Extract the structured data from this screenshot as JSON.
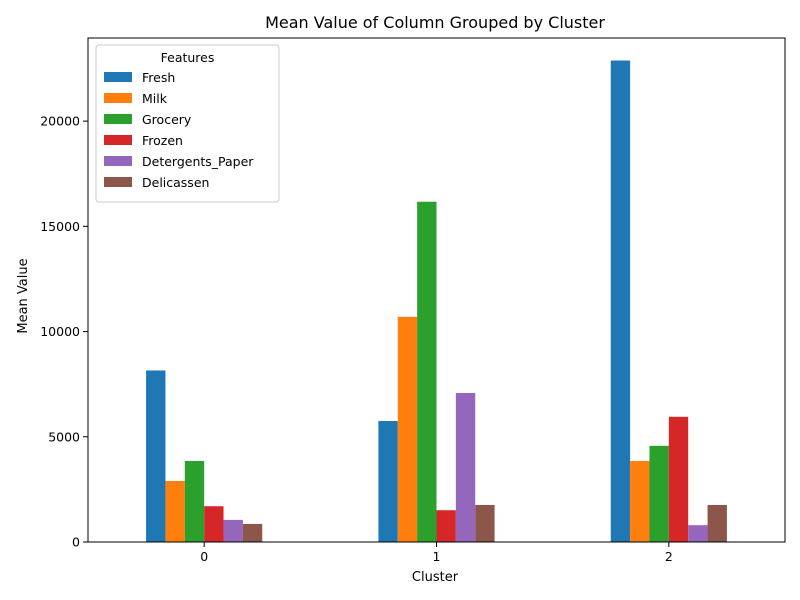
{
  "chart_data": {
    "type": "bar",
    "title": "Mean Value of Column Grouped by Cluster",
    "xlabel": "Cluster",
    "ylabel": "Mean Value",
    "categories": [
      "0",
      "1",
      "2"
    ],
    "ylim": [
      0,
      23950
    ],
    "yticks": [
      0,
      5000,
      10000,
      15000,
      20000
    ],
    "legend": {
      "title": "Features",
      "position": "upper-left"
    },
    "series": [
      {
        "name": "Fresh",
        "color": "#1f77b4",
        "values": [
          8150,
          5750,
          22880
        ]
      },
      {
        "name": "Milk",
        "color": "#ff7f0e",
        "values": [
          2900,
          10700,
          3850
        ]
      },
      {
        "name": "Grocery",
        "color": "#2ca02c",
        "values": [
          3850,
          16170,
          4570
        ]
      },
      {
        "name": "Frozen",
        "color": "#d62728",
        "values": [
          1700,
          1510,
          5950
        ]
      },
      {
        "name": "Detergents_Paper",
        "color": "#9467bd",
        "values": [
          1050,
          7080,
          800
        ]
      },
      {
        "name": "Delicassen",
        "color": "#8c564b",
        "values": [
          860,
          1760,
          1760
        ]
      }
    ]
  }
}
